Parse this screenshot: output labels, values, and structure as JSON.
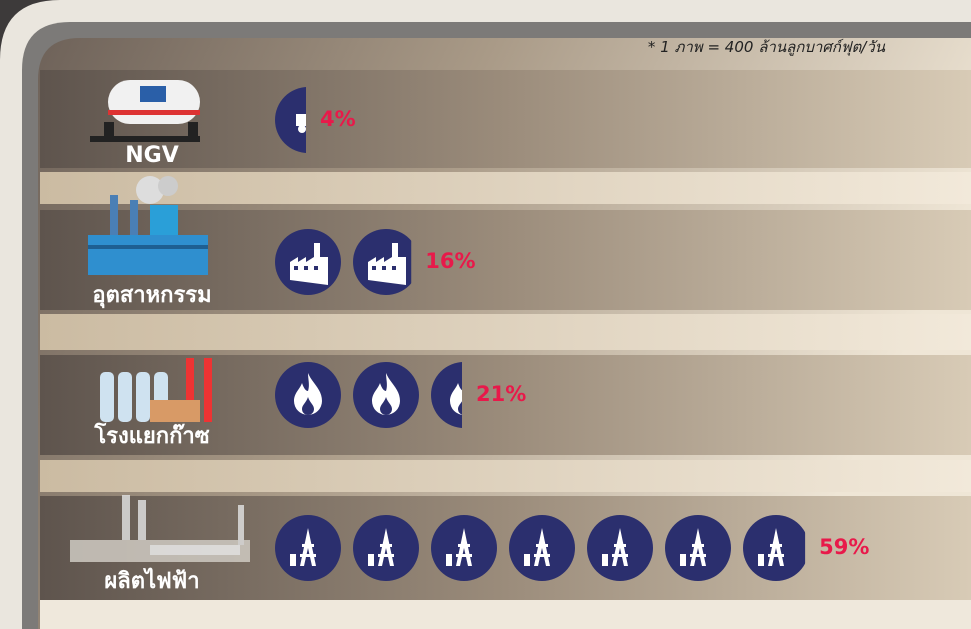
{
  "chart_data": {
    "type": "pictogram",
    "note": "* 1 ภาพ = 400 ล้านลูกบาศก์ฟุต/วัน",
    "categories": [
      "NGV",
      "อุตสาหกรรม",
      "โรงแยกก๊าซ",
      "ผลิตไฟฟ้า"
    ],
    "values": [
      4,
      16,
      21,
      59
    ],
    "value_labels": [
      "4%",
      "16%",
      "21%",
      "59%"
    ],
    "color": "#2b2f6e",
    "label_color": "#e8194a"
  }
}
